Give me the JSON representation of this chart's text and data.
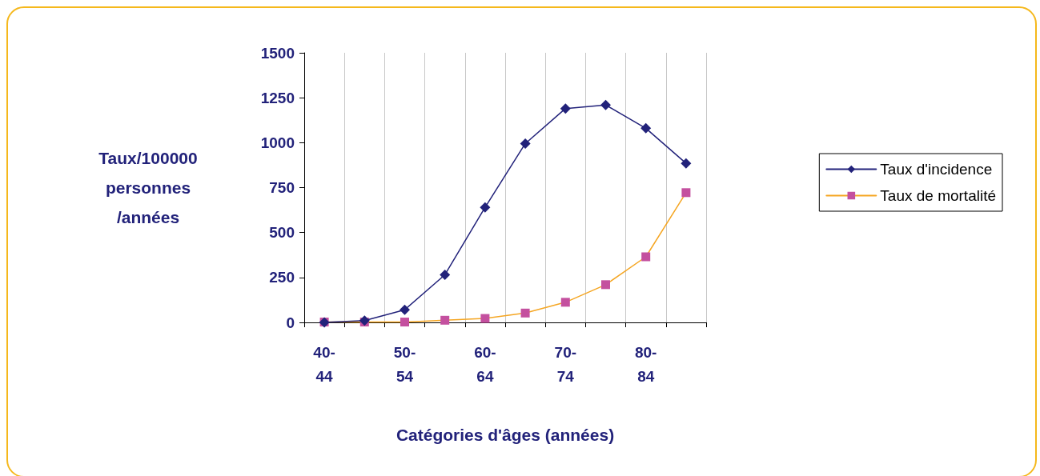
{
  "chart_data": {
    "type": "line",
    "xlabel": "Catégories d'âges (années)",
    "ylabel": "Taux/100000\npersonnes\n/années",
    "categories": [
      "40-44",
      null,
      "50-54",
      null,
      "60-64",
      null,
      "70-74",
      null,
      "80-84",
      null
    ],
    "series": [
      {
        "name": "Taux d'incidence",
        "color": "#22227a",
        "marker": "diamond",
        "values": [
          0,
          10,
          70,
          265,
          640,
          995,
          1190,
          1210,
          1080,
          885
        ]
      },
      {
        "name": "Taux de mortalité",
        "color": "#f5a623",
        "marker": "square",
        "values": [
          2,
          2,
          2,
          12,
          22,
          52,
          112,
          210,
          365,
          722
        ]
      }
    ],
    "ylim": [
      0,
      1500
    ],
    "yticks": [
      0,
      250,
      500,
      750,
      1000,
      1250,
      1500
    ],
    "grid": "x",
    "legend": "right",
    "line_style": "solid"
  }
}
